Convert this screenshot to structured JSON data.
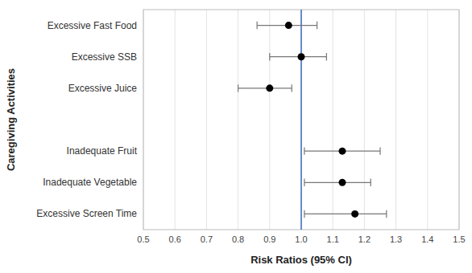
{
  "chart_data": {
    "type": "forest",
    "xlabel": "Risk Ratios (95% CI)",
    "ylabel": "Caregiving Activities",
    "categories": [
      "Excessive Fast Food",
      "Excessive SSB",
      "Excessive Juice",
      null,
      "Inadequate Fruit",
      "Inadequate Vegetable",
      "Excessive Screen Time"
    ],
    "values": [
      0.96,
      1.0,
      0.9,
      null,
      1.13,
      1.13,
      1.17
    ],
    "ci_low": [
      0.86,
      0.9,
      0.8,
      null,
      1.01,
      1.01,
      1.01
    ],
    "ci_high": [
      1.05,
      1.08,
      0.97,
      null,
      1.25,
      1.22,
      1.27
    ],
    "color": "#000000",
    "reference_line": {
      "value": 1.0,
      "color": "#4472C4"
    },
    "xlim": [
      0.5,
      1.5
    ],
    "xticks": [
      0.5,
      0.6,
      0.7,
      0.8,
      0.9,
      {
        "value": 1.0,
        "label": "1.0"
      },
      1.1,
      1.2,
      1.3,
      1.4,
      1.5
    ],
    "grid": true
  }
}
